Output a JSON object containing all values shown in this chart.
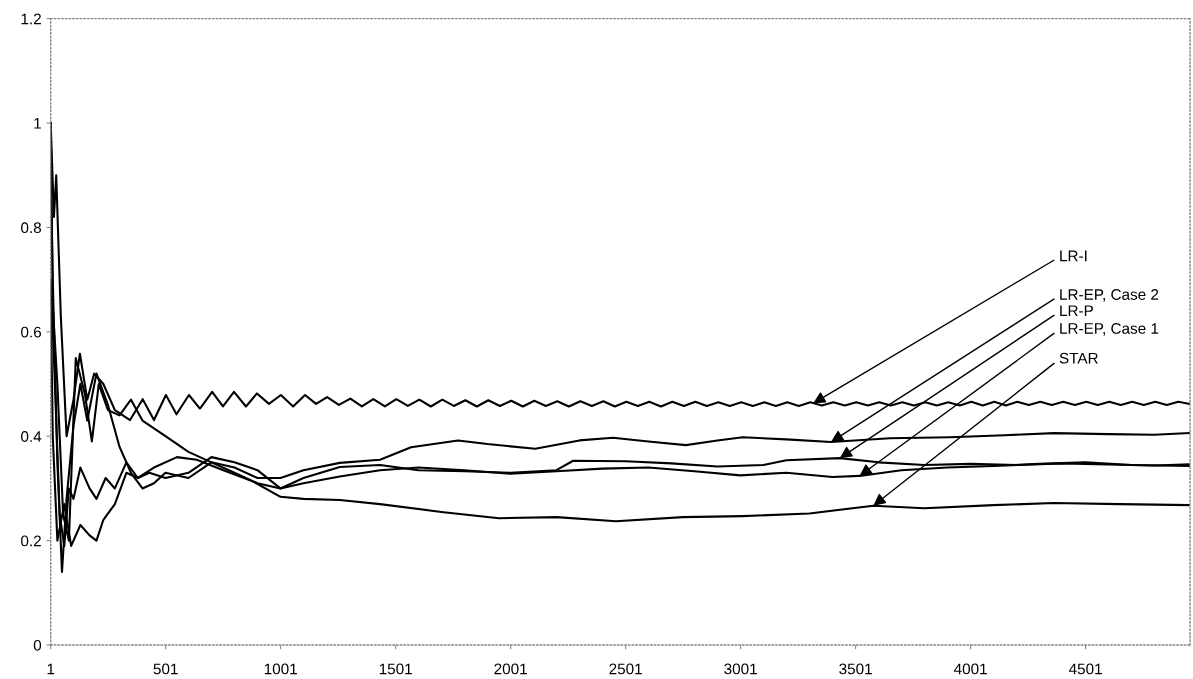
{
  "chart_data": {
    "type": "line",
    "xlim": [
      1,
      4955
    ],
    "xticks": [
      1,
      501,
      1001,
      1501,
      2001,
      2501,
      3001,
      3501,
      4001,
      4501
    ],
    "ylim": [
      0,
      1.2
    ],
    "yticks": [
      0,
      0.2,
      0.4,
      0.6,
      0.8,
      1,
      1.2
    ],
    "grid": false,
    "legend": false,
    "marker": "none",
    "line_style": "solid",
    "series": [
      {
        "color": "#000000",
        "x": [
          1,
          15,
          25,
          45,
          70,
          100,
          128,
          160,
          190,
          230,
          280,
          346,
          401,
          450,
          502,
          548,
          602,
          650,
          703,
          750,
          798,
          850,
          898,
          950,
          1002,
          1055,
          1107,
          1155,
          1203,
          1254,
          1304,
          1354,
          1404,
          1454,
          1504,
          1554,
          1604,
          1654,
          1704,
          1754,
          1804,
          1854,
          1904,
          1954,
          2004,
          2054,
          2104,
          2154,
          2204,
          2254,
          2304,
          2354,
          2404,
          2454,
          2504,
          2554,
          2604,
          2654,
          2704,
          2754,
          2804,
          2854,
          2904,
          2954,
          3004,
          3054,
          3104,
          3154,
          3204,
          3254,
          3304,
          3354,
          3404,
          3454,
          3504,
          3554,
          3604,
          3654,
          3704,
          3754,
          3804,
          3854,
          3904,
          3954,
          4004,
          4054,
          4104,
          4154,
          4204,
          4254,
          4304,
          4354,
          4404,
          4454,
          4504,
          4554,
          4604,
          4654,
          4704,
          4754,
          4804,
          4854,
          4904,
          4950
        ],
        "values": [
          1.0,
          0.82,
          0.9,
          0.63,
          0.4,
          0.47,
          0.558,
          0.47,
          0.52,
          0.5,
          0.45,
          0.431,
          0.471,
          0.431,
          0.479,
          0.442,
          0.479,
          0.453,
          0.485,
          0.457,
          0.485,
          0.457,
          0.482,
          0.462,
          0.479,
          0.457,
          0.479,
          0.462,
          0.475,
          0.46,
          0.472,
          0.457,
          0.471,
          0.457,
          0.471,
          0.458,
          0.47,
          0.457,
          0.47,
          0.458,
          0.469,
          0.457,
          0.469,
          0.458,
          0.468,
          0.457,
          0.468,
          0.458,
          0.467,
          0.457,
          0.467,
          0.458,
          0.467,
          0.457,
          0.466,
          0.458,
          0.466,
          0.457,
          0.466,
          0.458,
          0.466,
          0.458,
          0.465,
          0.458,
          0.465,
          0.458,
          0.465,
          0.458,
          0.465,
          0.458,
          0.465,
          0.459,
          0.465,
          0.459,
          0.465,
          0.459,
          0.465,
          0.459,
          0.465,
          0.459,
          0.465,
          0.459,
          0.465,
          0.459,
          0.466,
          0.459,
          0.466,
          0.459,
          0.466,
          0.46,
          0.466,
          0.46,
          0.466,
          0.46,
          0.466,
          0.46,
          0.466,
          0.46,
          0.466,
          0.46,
          0.466,
          0.46,
          0.466,
          0.462
        ]
      },
      {
        "color": "#000000",
        "x": [
          1,
          10,
          30,
          55,
          80,
          110,
          150,
          180,
          210,
          250,
          300,
          350,
          400,
          500,
          600,
          700,
          800,
          900,
          1000,
          1100,
          1258,
          1433,
          1568,
          1772,
          1900,
          2108,
          2300,
          2446,
          2600,
          2763,
          2900,
          3010,
          3200,
          3394,
          3650,
          3911,
          4150,
          4363,
          4600,
          4800,
          4950
        ],
        "values": [
          1.0,
          0.65,
          0.5,
          0.25,
          0.2,
          0.55,
          0.48,
          0.39,
          0.5,
          0.45,
          0.44,
          0.47,
          0.43,
          0.4,
          0.37,
          0.35,
          0.34,
          0.32,
          0.32,
          0.335,
          0.349,
          0.355,
          0.379,
          0.392,
          0.385,
          0.376,
          0.392,
          0.397,
          0.39,
          0.383,
          0.392,
          0.398,
          0.394,
          0.389,
          0.396,
          0.398,
          0.402,
          0.406,
          0.404,
          0.403,
          0.406
        ]
      },
      {
        "color": "#000000",
        "x": [
          1,
          10,
          30,
          50,
          70,
          100,
          130,
          160,
          200,
          250,
          300,
          350,
          400,
          450,
          500,
          600,
          700,
          800,
          900,
          1000,
          1100,
          1258,
          1433,
          1600,
          1800,
          2000,
          2200,
          2273,
          2500,
          2700,
          2900,
          3100,
          3200,
          3432,
          3600,
          3800,
          4000,
          4200,
          4400,
          4600,
          4800,
          4950
        ],
        "values": [
          0.92,
          0.7,
          0.35,
          0.14,
          0.28,
          0.42,
          0.5,
          0.43,
          0.52,
          0.46,
          0.38,
          0.33,
          0.3,
          0.31,
          0.33,
          0.32,
          0.35,
          0.33,
          0.31,
          0.3,
          0.32,
          0.341,
          0.345,
          0.335,
          0.333,
          0.33,
          0.335,
          0.353,
          0.352,
          0.348,
          0.342,
          0.345,
          0.354,
          0.358,
          0.35,
          0.345,
          0.347,
          0.345,
          0.348,
          0.346,
          0.344,
          0.346
        ]
      },
      {
        "color": "#000000",
        "x": [
          1,
          15,
          40,
          60,
          80,
          100,
          130,
          170,
          200,
          240,
          280,
          330,
          380,
          430,
          500,
          600,
          700,
          800,
          900,
          1000,
          1100,
          1258,
          1433,
          1600,
          1800,
          2000,
          2200,
          2400,
          2600,
          2800,
          3000,
          3200,
          3400,
          3518,
          3700,
          3900,
          4100,
          4300,
          4500,
          4700,
          4950
        ],
        "values": [
          0.7,
          0.55,
          0.25,
          0.19,
          0.3,
          0.28,
          0.34,
          0.3,
          0.28,
          0.32,
          0.3,
          0.35,
          0.32,
          0.33,
          0.32,
          0.33,
          0.36,
          0.35,
          0.335,
          0.3,
          0.31,
          0.323,
          0.335,
          0.34,
          0.335,
          0.328,
          0.333,
          0.338,
          0.34,
          0.333,
          0.325,
          0.33,
          0.322,
          0.324,
          0.335,
          0.34,
          0.343,
          0.347,
          0.35,
          0.345,
          0.343
        ]
      },
      {
        "color": "#000000",
        "x": [
          1,
          10,
          30,
          60,
          90,
          130,
          170,
          200,
          230,
          280,
          330,
          380,
          450,
          550,
          636,
          752,
          882,
          1000,
          1100,
          1258,
          1433,
          1700,
          1950,
          2200,
          2459,
          2750,
          3010,
          3300,
          3578,
          3800,
          4100,
          4363,
          4650,
          4950
        ],
        "values": [
          0.68,
          0.4,
          0.2,
          0.27,
          0.19,
          0.23,
          0.21,
          0.2,
          0.24,
          0.27,
          0.33,
          0.32,
          0.34,
          0.36,
          0.355,
          0.335,
          0.313,
          0.284,
          0.28,
          0.278,
          0.27,
          0.255,
          0.243,
          0.245,
          0.237,
          0.245,
          0.247,
          0.252,
          0.267,
          0.262,
          0.268,
          0.272,
          0.27,
          0.268
        ]
      }
    ],
    "annotations": [
      {
        "text": "LR-I",
        "x": 3316,
        "y": 0.463
      },
      {
        "text": "LR-EP, Case 2",
        "x": 3394,
        "y": 0.389
      },
      {
        "text": "LR-P",
        "x": 3432,
        "y": 0.358
      },
      {
        "text": "LR-EP, Case 1",
        "x": 3518,
        "y": 0.324
      },
      {
        "text": "STAR",
        "x": 3578,
        "y": 0.267
      }
    ]
  }
}
